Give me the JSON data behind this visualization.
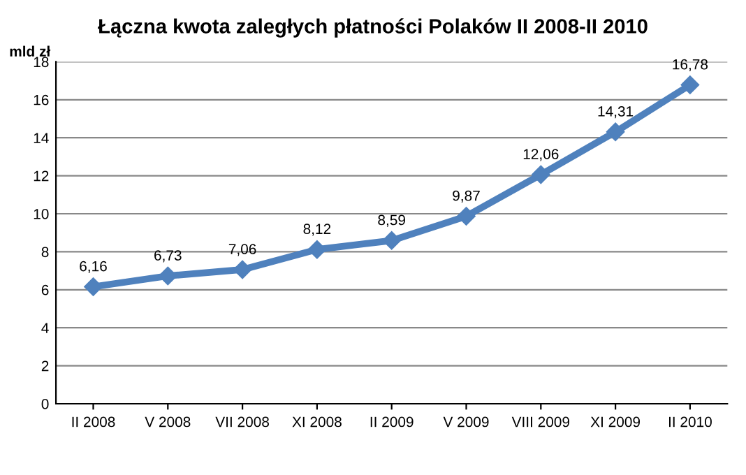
{
  "chart_data": {
    "type": "line",
    "title": "Łączna kwota zaległych płatności Polaków II 2008-II 2010",
    "ylabel": "mld zł",
    "categories": [
      "II 2008",
      "V 2008",
      "VII 2008",
      "XI 2008",
      "II 2009",
      "V 2009",
      "VIII 2009",
      "XI 2009",
      "II 2010"
    ],
    "values": [
      6.16,
      6.73,
      7.06,
      8.12,
      8.59,
      9.87,
      12.06,
      14.31,
      16.78
    ],
    "value_labels": [
      "6,16",
      "6,73",
      "7,06",
      "8,12",
      "8,59",
      "9,87",
      "12,06",
      "14,31",
      "16,78"
    ],
    "color": "#4f81bd",
    "marker": "diamond",
    "line_style": "solid",
    "grid": "y",
    "legend": false,
    "ylim": [
      0,
      18
    ],
    "yticks": [
      0,
      2,
      4,
      6,
      8,
      10,
      12,
      14,
      16,
      18
    ]
  }
}
